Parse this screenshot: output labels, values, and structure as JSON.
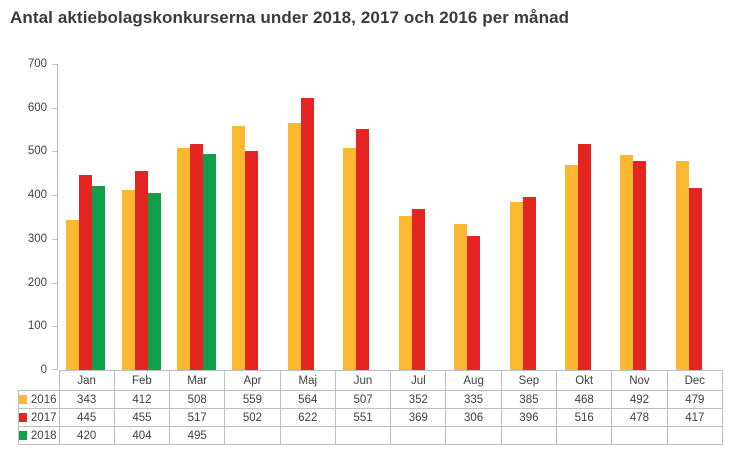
{
  "title": "Antal aktiebolagskonkurserna under 2018, 2017 och 2016 per månad",
  "chart_data": {
    "type": "bar",
    "title": "Antal aktiebolagskonkurserna under 2018, 2017 och 2016 per månad",
    "categories": [
      "Jan",
      "Feb",
      "Mar",
      "Apr",
      "Maj",
      "Jun",
      "Jul",
      "Aug",
      "Sep",
      "Okt",
      "Nov",
      "Dec"
    ],
    "series": [
      {
        "name": "2016",
        "color": "#FBB830",
        "values": [
          343,
          412,
          508,
          559,
          564,
          507,
          352,
          335,
          385,
          468,
          492,
          479
        ]
      },
      {
        "name": "2017",
        "color": "#E52521",
        "values": [
          445,
          455,
          517,
          502,
          622,
          551,
          369,
          306,
          396,
          516,
          478,
          417
        ]
      },
      {
        "name": "2018",
        "color": "#10A04A",
        "values": [
          420,
          404,
          495,
          null,
          null,
          null,
          null,
          null,
          null,
          null,
          null,
          null
        ]
      }
    ],
    "xlabel": "",
    "ylabel": "",
    "ylim": [
      0,
      700
    ],
    "yticks": [
      0,
      100,
      200,
      300,
      400,
      500,
      600,
      700
    ],
    "grid": false,
    "legend_position": "data-table-left"
  },
  "colors": {
    "title_text": "#3b3b3b",
    "axis_line": "#bfbfbf",
    "table_border": "#bfbfbf",
    "label_text": "#404040",
    "background": "#ffffff"
  }
}
